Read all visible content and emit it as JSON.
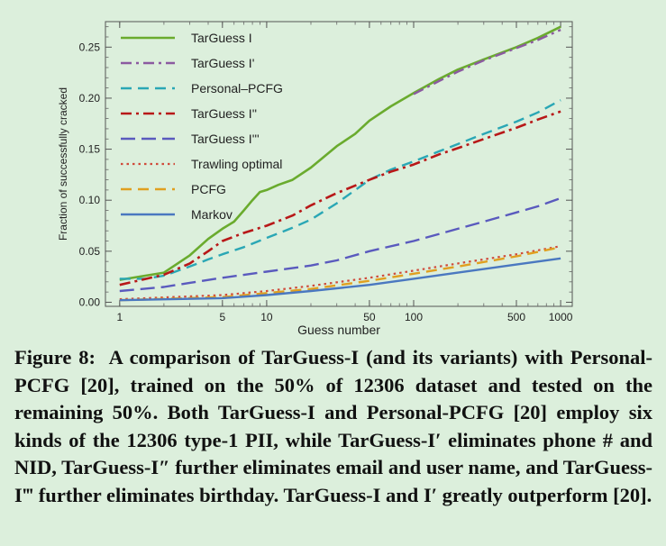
{
  "chart_data": {
    "type": "line",
    "xlabel": "Guess number",
    "ylabel": "Fraction of successfully cracked",
    "xscale": "log",
    "xlim": [
      0.8,
      1200
    ],
    "ylim": [
      -0.004,
      0.275
    ],
    "xticks_major": [
      1,
      5,
      10,
      50,
      100,
      500,
      1000
    ],
    "yticks": [
      0.0,
      0.05,
      0.1,
      0.15,
      0.2,
      0.25
    ],
    "ytick_labels": [
      "0.00",
      "0.05",
      "0.10",
      "0.15",
      "0.20",
      "0.25"
    ],
    "legend_position": "top-left",
    "series": [
      {
        "name": "TarGuess I",
        "color": "#6aab2e",
        "dash": "solid",
        "width": 2.6,
        "x": [
          1,
          2,
          3,
          4,
          5,
          6,
          7,
          8,
          9,
          10,
          12,
          15,
          20,
          30,
          40,
          50,
          70,
          100,
          150,
          200,
          300,
          500,
          700,
          1000
        ],
        "y": [
          0.022,
          0.029,
          0.046,
          0.062,
          0.072,
          0.079,
          0.09,
          0.1,
          0.108,
          0.11,
          0.115,
          0.12,
          0.132,
          0.153,
          0.165,
          0.178,
          0.192,
          0.205,
          0.219,
          0.228,
          0.238,
          0.25,
          0.259,
          0.27
        ]
      },
      {
        "name": "TarGuess I'",
        "color": "#8b5aa0",
        "dash": "dashdot",
        "width": 2.4,
        "x": [
          100,
          150,
          200,
          300,
          500,
          700,
          1000
        ],
        "y": [
          0.204,
          0.217,
          0.226,
          0.237,
          0.249,
          0.257,
          0.267
        ]
      },
      {
        "name": "Personal–PCFG",
        "color": "#2aa7b5",
        "dash": "dash",
        "width": 2.4,
        "x": [
          1,
          1.5,
          2,
          3,
          4,
          5,
          7,
          10,
          15,
          20,
          30,
          50,
          70,
          100,
          150,
          200,
          300,
          500,
          700,
          1000
        ],
        "y": [
          0.023,
          0.023,
          0.026,
          0.035,
          0.042,
          0.047,
          0.054,
          0.063,
          0.073,
          0.081,
          0.097,
          0.12,
          0.13,
          0.138,
          0.148,
          0.155,
          0.165,
          0.177,
          0.186,
          0.198
        ]
      },
      {
        "name": "TarGuess I''",
        "color": "#b81818",
        "dash": "dashdot",
        "width": 2.6,
        "x": [
          1,
          2,
          3,
          4,
          5,
          7,
          10,
          15,
          20,
          30,
          50,
          70,
          100,
          150,
          200,
          300,
          500,
          700,
          1000
        ],
        "y": [
          0.017,
          0.027,
          0.038,
          0.05,
          0.06,
          0.068,
          0.075,
          0.085,
          0.095,
          0.107,
          0.12,
          0.128,
          0.135,
          0.145,
          0.151,
          0.16,
          0.171,
          0.179,
          0.187
        ]
      },
      {
        "name": "TarGuess I'''",
        "color": "#5a5abe",
        "dash": "longdash",
        "width": 2.4,
        "x": [
          1,
          2,
          3,
          5,
          10,
          20,
          30,
          50,
          100,
          200,
          300,
          500,
          700,
          1000
        ],
        "y": [
          0.011,
          0.015,
          0.019,
          0.024,
          0.03,
          0.036,
          0.041,
          0.05,
          0.06,
          0.072,
          0.079,
          0.088,
          0.094,
          0.102
        ]
      },
      {
        "name": "Trawling optimal",
        "color": "#d04a3a",
        "dash": "dot",
        "width": 2.2,
        "x": [
          1,
          5,
          10,
          20,
          50,
          100,
          200,
          500,
          1000
        ],
        "y": [
          0.003,
          0.007,
          0.011,
          0.016,
          0.024,
          0.031,
          0.038,
          0.047,
          0.055
        ]
      },
      {
        "name": "PCFG",
        "color": "#e0a020",
        "dash": "dash",
        "width": 2.4,
        "x": [
          1,
          5,
          10,
          20,
          50,
          100,
          200,
          500,
          1000
        ],
        "y": [
          0.002,
          0.005,
          0.009,
          0.013,
          0.021,
          0.028,
          0.035,
          0.045,
          0.054
        ]
      },
      {
        "name": "Markov",
        "color": "#4a78c0",
        "dash": "solid",
        "width": 2.4,
        "x": [
          1,
          5,
          10,
          20,
          50,
          100,
          200,
          500,
          1000
        ],
        "y": [
          0.002,
          0.004,
          0.007,
          0.011,
          0.017,
          0.023,
          0.029,
          0.037,
          0.043
        ]
      }
    ]
  },
  "caption": {
    "label": "Figure 8:",
    "text": "A comparison of TarGuess-I (and its variants) with Personal-PCFG [20], trained on the 50% of 12306 dataset and tested on the remaining 50%. Both TarGuess-I and Personal-PCFG [20] employ six kinds of the 12306 type-1 PII, while TarGuess-I′ eliminates phone # and NID, TarGuess-I″ further eliminates email and user name, and TarGuess-I‴ further eliminates birthday. TarGuess-I and I′ greatly outperform [20]."
  }
}
